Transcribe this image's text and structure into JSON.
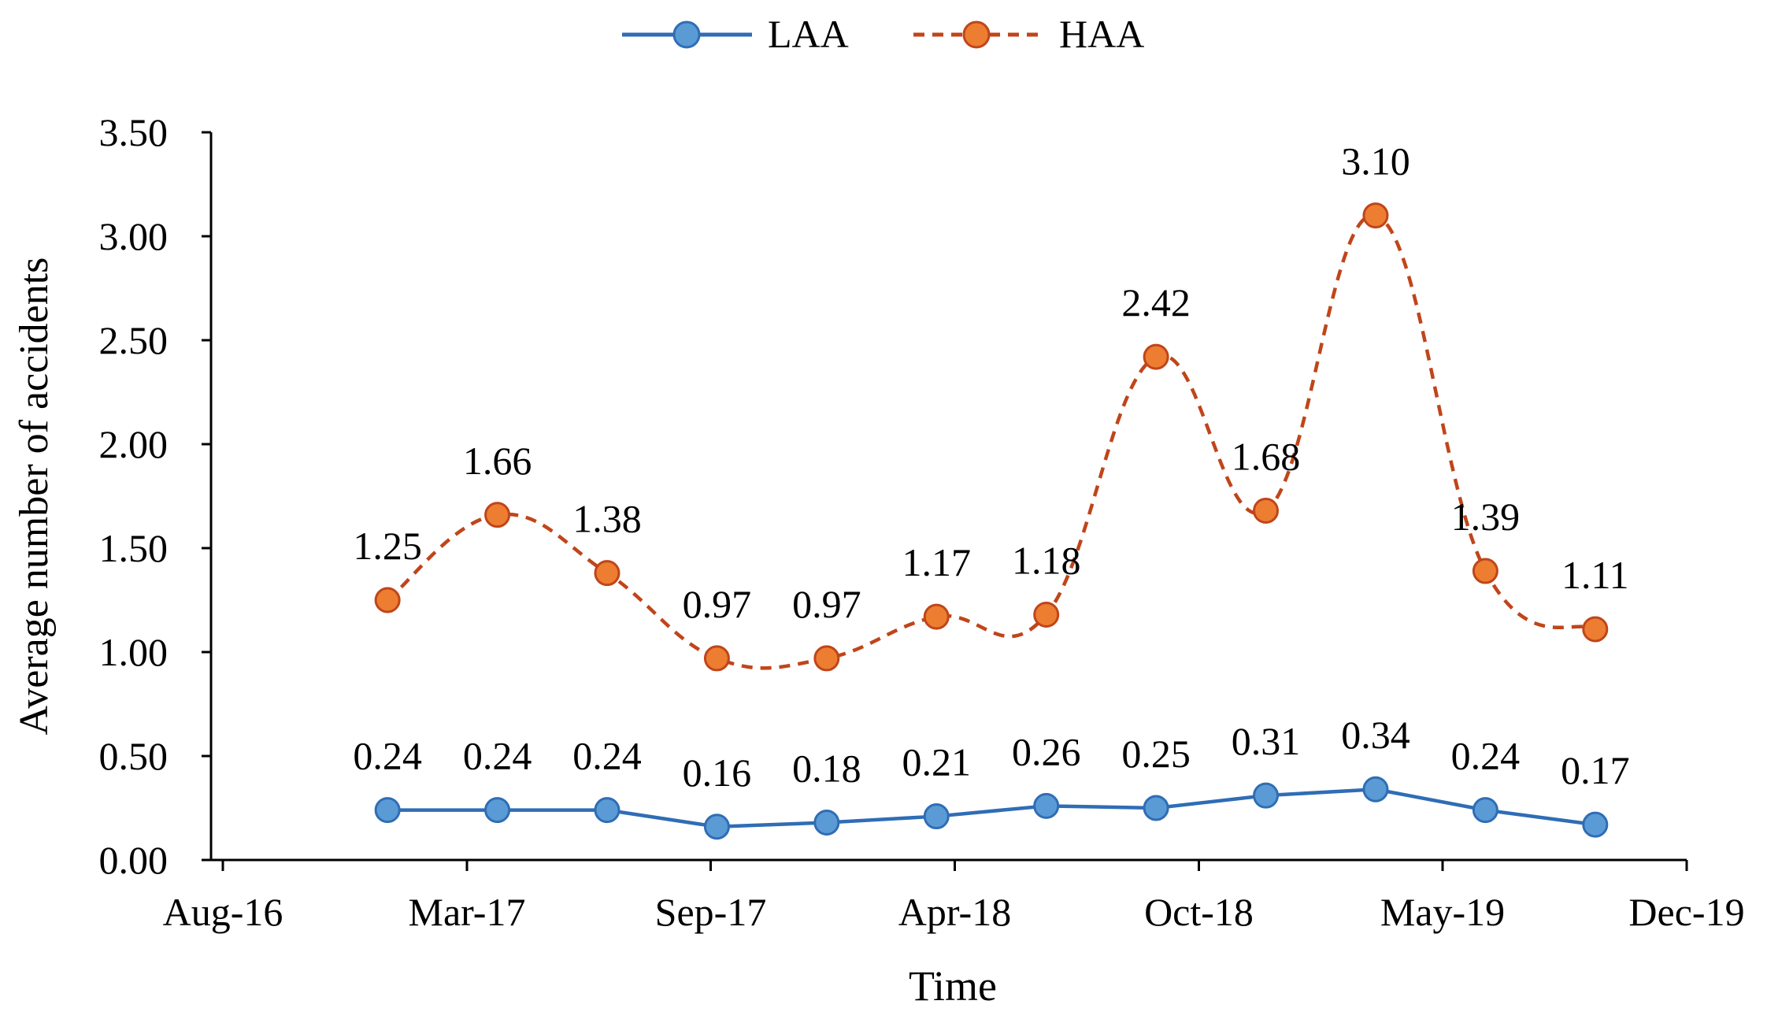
{
  "chart_data": {
    "type": "line",
    "xlabel": "Time",
    "ylabel": "Average number of accidents",
    "ylim": [
      0,
      3.5
    ],
    "y_ticks": [
      "0.00",
      "0.50",
      "1.00",
      "1.50",
      "2.00",
      "2.50",
      "3.00",
      "3.50"
    ],
    "x_tick_labels": [
      "Aug-16",
      "Mar-17",
      "Sep-17",
      "Apr-18",
      "Oct-18",
      "May-19",
      "Dec-19"
    ],
    "x_domain_months": [
      0,
      40
    ],
    "x_tick_months": [
      0,
      6.67,
      13.33,
      20,
      26.67,
      33.33,
      40
    ],
    "x_point_months": [
      4.5,
      7.5,
      10.5,
      13.5,
      16.5,
      19.5,
      22.5,
      25.5,
      28.5,
      31.5,
      34.5,
      37.5
    ],
    "legend_position": "top-center",
    "series": [
      {
        "name": "LAA",
        "color": "#2f6db5",
        "marker_color": "#5b9bd5",
        "line_style": "solid",
        "smooth": false,
        "values": [
          0.24,
          0.24,
          0.24,
          0.16,
          0.18,
          0.21,
          0.26,
          0.25,
          0.31,
          0.34,
          0.24,
          0.17
        ],
        "labels": [
          "0.24",
          "0.24",
          "0.24",
          "0.16",
          "0.18",
          "0.21",
          "0.26",
          "0.25",
          "0.31",
          "0.34",
          "0.24",
          "0.17"
        ]
      },
      {
        "name": "HAA",
        "color": "#c0451a",
        "marker_color": "#ed7d31",
        "line_style": "dashed",
        "smooth": true,
        "values": [
          1.25,
          1.66,
          1.38,
          0.97,
          0.97,
          1.17,
          1.18,
          2.42,
          1.68,
          3.1,
          1.39,
          1.11
        ],
        "labels": [
          "1.25",
          "1.66",
          "1.38",
          "0.97",
          "0.97",
          "1.17",
          "1.18",
          "2.42",
          "1.68",
          "3.10",
          "1.39",
          "1.11"
        ]
      }
    ]
  }
}
